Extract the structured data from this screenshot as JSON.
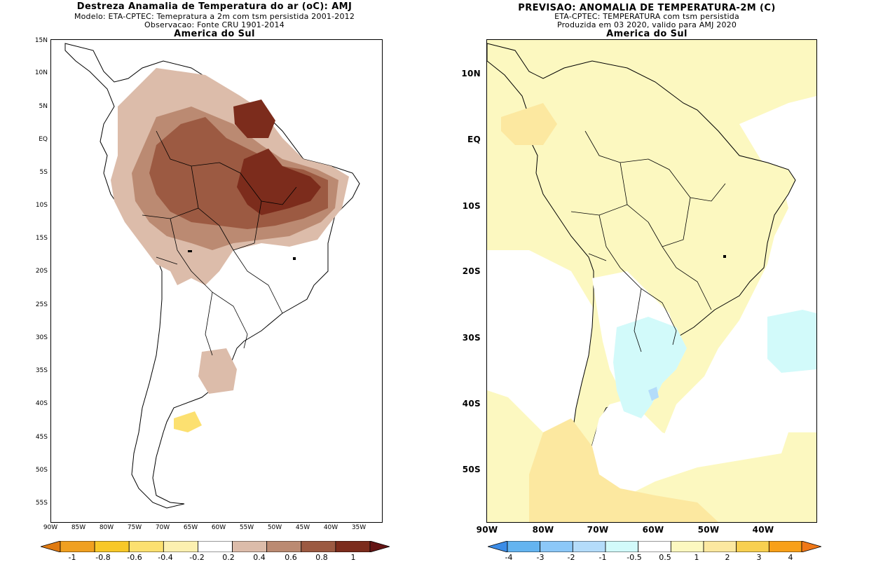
{
  "left_panel": {
    "title": "Destreza Anamalia de Temperatura do ar (oC): AMJ",
    "subtitle1": "Modelo: ETA-CPTEC: Temepratura a 2m com tsm persistida 2001-2012",
    "subtitle2": "Observacao: Fonte CRU 1901-2014",
    "region": "America do Sul",
    "lat_labels": [
      "15N",
      "10N",
      "5N",
      "EQ",
      "5S",
      "10S",
      "15S",
      "20S",
      "25S",
      "30S",
      "35S",
      "40S",
      "45S",
      "50S",
      "55S"
    ],
    "lon_labels": [
      "90W",
      "85W",
      "80W",
      "75W",
      "70W",
      "65W",
      "60W",
      "55W",
      "50W",
      "45W",
      "40W",
      "35W"
    ],
    "colorbar": {
      "labels": [
        "-1",
        "-0.8",
        "-0.6",
        "-0.4",
        "-0.2",
        "0.2",
        "0.4",
        "0.6",
        "0.8",
        "1"
      ],
      "colors": [
        "#e07a10",
        "#f0a020",
        "#f8c828",
        "#fce070",
        "#fcf0b0",
        "#ffffff",
        "#dcbcaa",
        "#bb8a72",
        "#9c5a42",
        "#7c2c1c",
        "#641414"
      ]
    }
  },
  "right_panel": {
    "title": "PREVISAO: ANOMALIA DE TEMPERATURA-2M (C)",
    "subtitle1": "ETA-CPTEC: TEMPERATURA com tsm persistida",
    "subtitle2": "Produzida em 03 2020, valido para AMJ 2020",
    "region": "America do Sul",
    "lat_labels": [
      "10N",
      "EQ",
      "10S",
      "20S",
      "30S",
      "40S",
      "50S"
    ],
    "lon_labels": [
      "90W",
      "80W",
      "70W",
      "60W",
      "50W",
      "40W"
    ],
    "colorbar": {
      "labels": [
        "-4",
        "-3",
        "-2",
        "-1",
        "-0.5",
        "0.5",
        "1",
        "2",
        "3",
        "4"
      ],
      "colors": [
        "#3c8ce6",
        "#64b4f0",
        "#8cc8f8",
        "#b4dcfa",
        "#d2fafa",
        "#ffffff",
        "#fcf8c0",
        "#fce8a0",
        "#f8d050",
        "#f8a018",
        "#f07818"
      ]
    }
  }
}
